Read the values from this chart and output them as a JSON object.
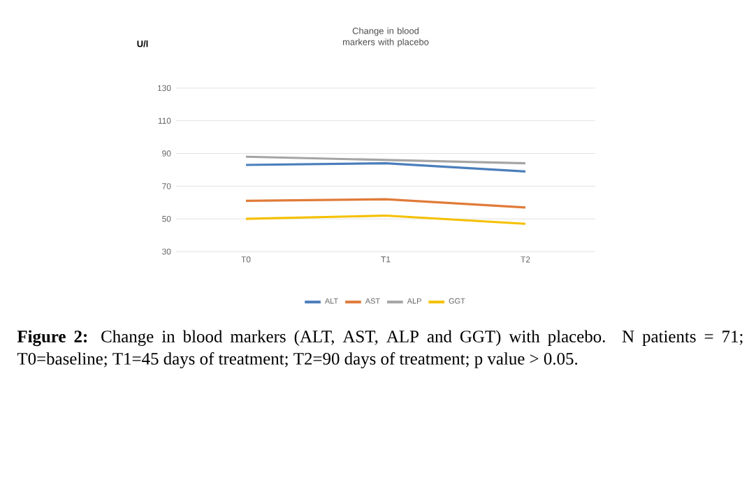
{
  "chart_data": {
    "type": "line",
    "title": "Change in blood markers with placebo",
    "ylabel": "U/l",
    "categories": [
      "T0",
      "T1",
      "T2"
    ],
    "series": [
      {
        "name": "ALT",
        "color": "#4a7ebb",
        "values": [
          83,
          84,
          79
        ]
      },
      {
        "name": "AST",
        "color": "#e07b39",
        "values": [
          61,
          62,
          57
        ]
      },
      {
        "name": "ALP",
        "color": "#a5a5a5",
        "values": [
          88,
          86,
          84
        ]
      },
      {
        "name": "GGT",
        "color": "#f5c000",
        "values": [
          50,
          52,
          47
        ]
      }
    ],
    "ylim": [
      30,
      130
    ],
    "yticks": [
      30,
      50,
      70,
      90,
      110,
      130
    ],
    "grid": "y",
    "legend": "bottom",
    "marker": "none",
    "line_style": "solid",
    "annotations": [
      "**Figure 2:** Change in blood markers (ALT, AST, ALP and GGT) with placebo. N patients = 71; T0=baseline; T1=45 days of treatment; T2=90 days of treatment; p value > 0.05."
    ]
  }
}
